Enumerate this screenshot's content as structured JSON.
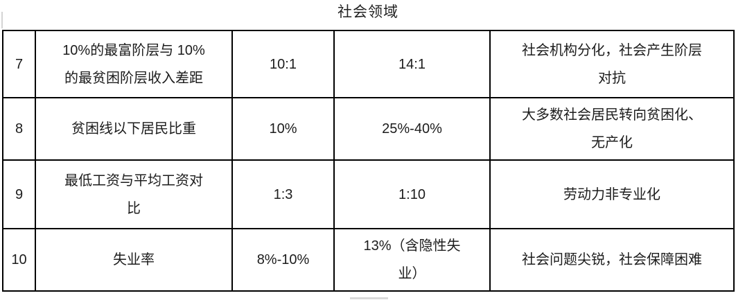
{
  "page": {
    "title": "社会领域"
  },
  "colors": {
    "border": "#000000",
    "text": "#1c1c1c",
    "background": "#ffffff",
    "artifact": "#c9c9c9"
  },
  "table": {
    "rows": [
      {
        "num": "7",
        "indicator": "10%的最富阶层与 10%\n的最贫困阶层收入差距",
        "value1": "10:1",
        "value2": "14:1",
        "description": "社会机构分化，社会产生阶层\n对抗"
      },
      {
        "num": "8",
        "indicator": "贫困线以下居民比重",
        "value1": "10%",
        "value2": "25%-40%",
        "description": "大多数社会居民转向贫困化、\n无产化"
      },
      {
        "num": "9",
        "indicator": "最低工资与平均工资对\n比",
        "value1": "1:3",
        "value2": "1:10",
        "description": "劳动力非专业化"
      },
      {
        "num": "10",
        "indicator": "失业率",
        "value1": "8%-10%",
        "value2": "13%（含隐性失\n业）",
        "description": "社会问题尖锐，社会保障困难"
      }
    ]
  }
}
